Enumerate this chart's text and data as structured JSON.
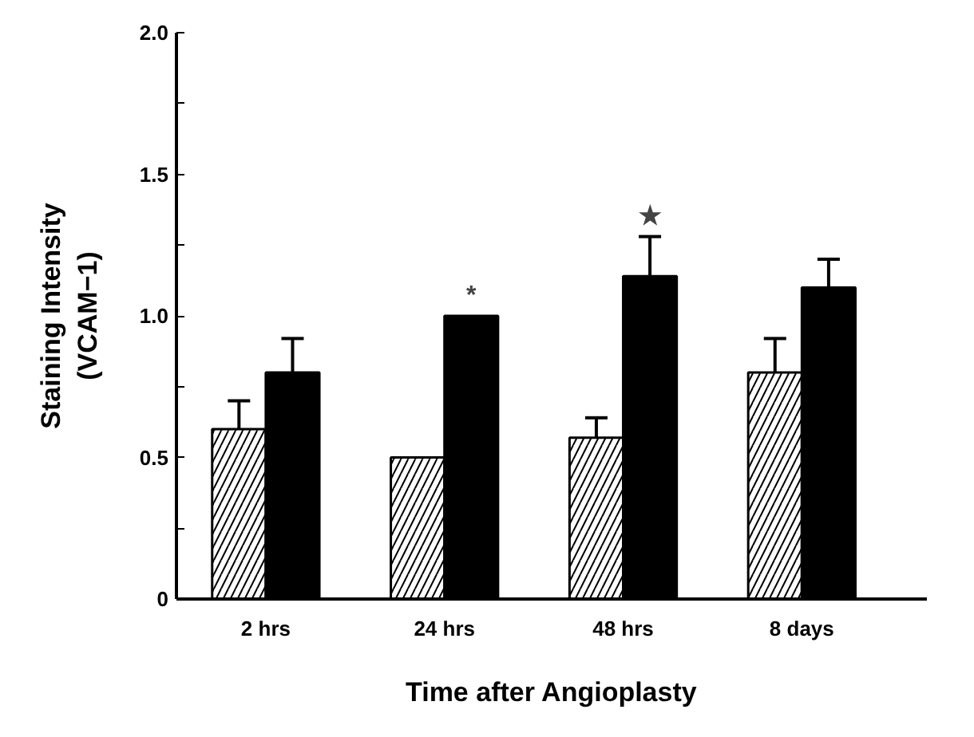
{
  "chart_data": {
    "type": "bar",
    "xlabel": "Time after Angioplasty",
    "ylabel": "Staining Intensity\n(VCAM−1)",
    "categories": [
      "2 hrs",
      "24 hrs",
      "48 hrs",
      "8 days"
    ],
    "series": [
      {
        "color": "#ffffff",
        "values": [
          0.6,
          0.5,
          0.57,
          0.8
        ],
        "errors": [
          0.1,
          null,
          0.07,
          0.12
        ]
      },
      {
        "color": "#000000",
        "values": [
          0.8,
          1.0,
          1.14,
          1.1
        ],
        "errors": [
          0.12,
          null,
          0.14,
          0.1
        ]
      }
    ],
    "ylim": [
      0,
      2.0
    ],
    "yticks": [
      0,
      {
        "value": 0.25,
        "label": null
      },
      0.5,
      {
        "value": 0.75,
        "label": null
      },
      {
        "value": 1.0,
        "label": "1.0"
      },
      {
        "value": 1.25,
        "label": null
      },
      1.5,
      {
        "value": 1.75,
        "label": null
      },
      {
        "value": 2.0,
        "label": "2.0"
      }
    ],
    "annotations": [
      {
        "text": "*",
        "x": "24 hrs",
        "y": 1.0
      },
      {
        "text": "★",
        "x": "48 hrs",
        "y": 1.14
      }
    ],
    "grid": false
  }
}
